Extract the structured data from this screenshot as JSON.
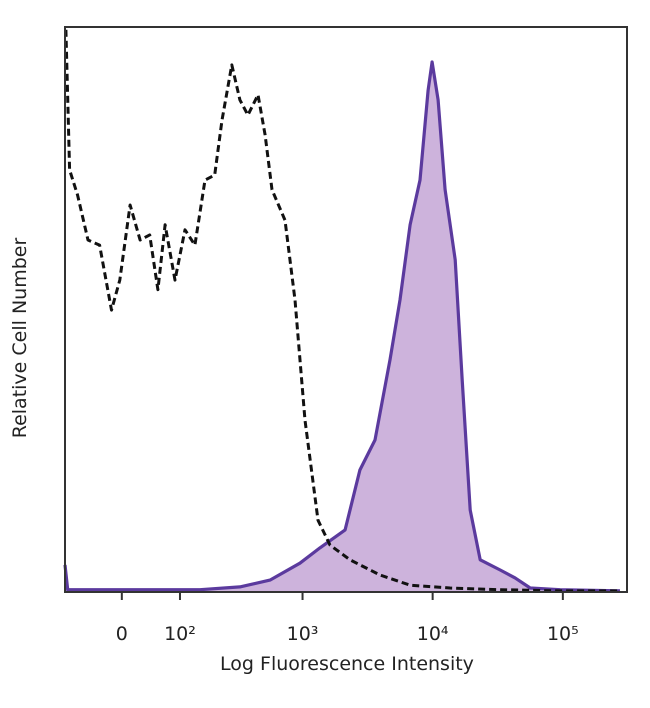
{
  "chart_data": {
    "type": "histogram-overlay",
    "x_label": "Log Fluorescence Intensity",
    "y_label": "Relative Cell Number",
    "x_scale": "asinh",
    "asinh_cofactor": 82,
    "xlim": [
      -97,
      311000
    ],
    "xticks": [
      0,
      {
        "value": 100,
        "label": "10²"
      },
      {
        "value": 1000,
        "label": "10³"
      },
      {
        "value": 10000,
        "label": "10⁴"
      },
      {
        "value": 100000,
        "label": "10⁵"
      }
    ],
    "ylim": [
      0,
      100
    ],
    "series": [
      {
        "color": "#5b3a9e",
        "fill": "#cdb3dc",
        "dashed": false,
        "x": [
          -97,
          -91,
          -76,
          153,
          326,
          560,
          955,
          1361,
          2124,
          2764,
          3608,
          4707,
          5617,
          6708,
          8003,
          9225,
          9906,
          11013,
          12472,
          14908,
          16859,
          19426,
          23190,
          33000,
          43000,
          56100,
          95400,
          275000
        ],
        "values": [
          4.8,
          0.4,
          0.4,
          0.4,
          0.9,
          2.1,
          5.1,
          7.8,
          11.0,
          21.6,
          26.9,
          41.1,
          51.7,
          65.0,
          72.9,
          88.8,
          93.8,
          87.1,
          71.2,
          58.8,
          37.5,
          14.5,
          5.7,
          3.9,
          2.5,
          0.7,
          0.4,
          0.2
        ]
      },
      {
        "color": "#111111",
        "fill": null,
        "dashed": true,
        "x": [
          -95,
          -87,
          -71,
          -52,
          -33,
          -15,
          -3,
          12,
          27,
          42,
          56,
          69,
          89,
          112,
          138,
          169,
          204,
          234,
          281,
          326,
          377,
          452,
          513,
          581,
          732,
          875,
          1045,
          1315,
          1627,
          2320,
          3944,
          6708,
          13600,
          33000,
          95400,
          275000
        ],
        "values": [
          99.5,
          74.7,
          70.3,
          62.3,
          61.4,
          49.9,
          55.2,
          68.5,
          62.3,
          63.2,
          53.5,
          65.0,
          55.2,
          64.1,
          61.4,
          72.9,
          73.8,
          83.5,
          93.3,
          87.1,
          84.4,
          88.0,
          80.9,
          71.2,
          65.8,
          51.7,
          30.4,
          12.7,
          8.3,
          5.7,
          3.0,
          1.2,
          0.7,
          0.4,
          0.2,
          0.2
        ]
      }
    ]
  }
}
